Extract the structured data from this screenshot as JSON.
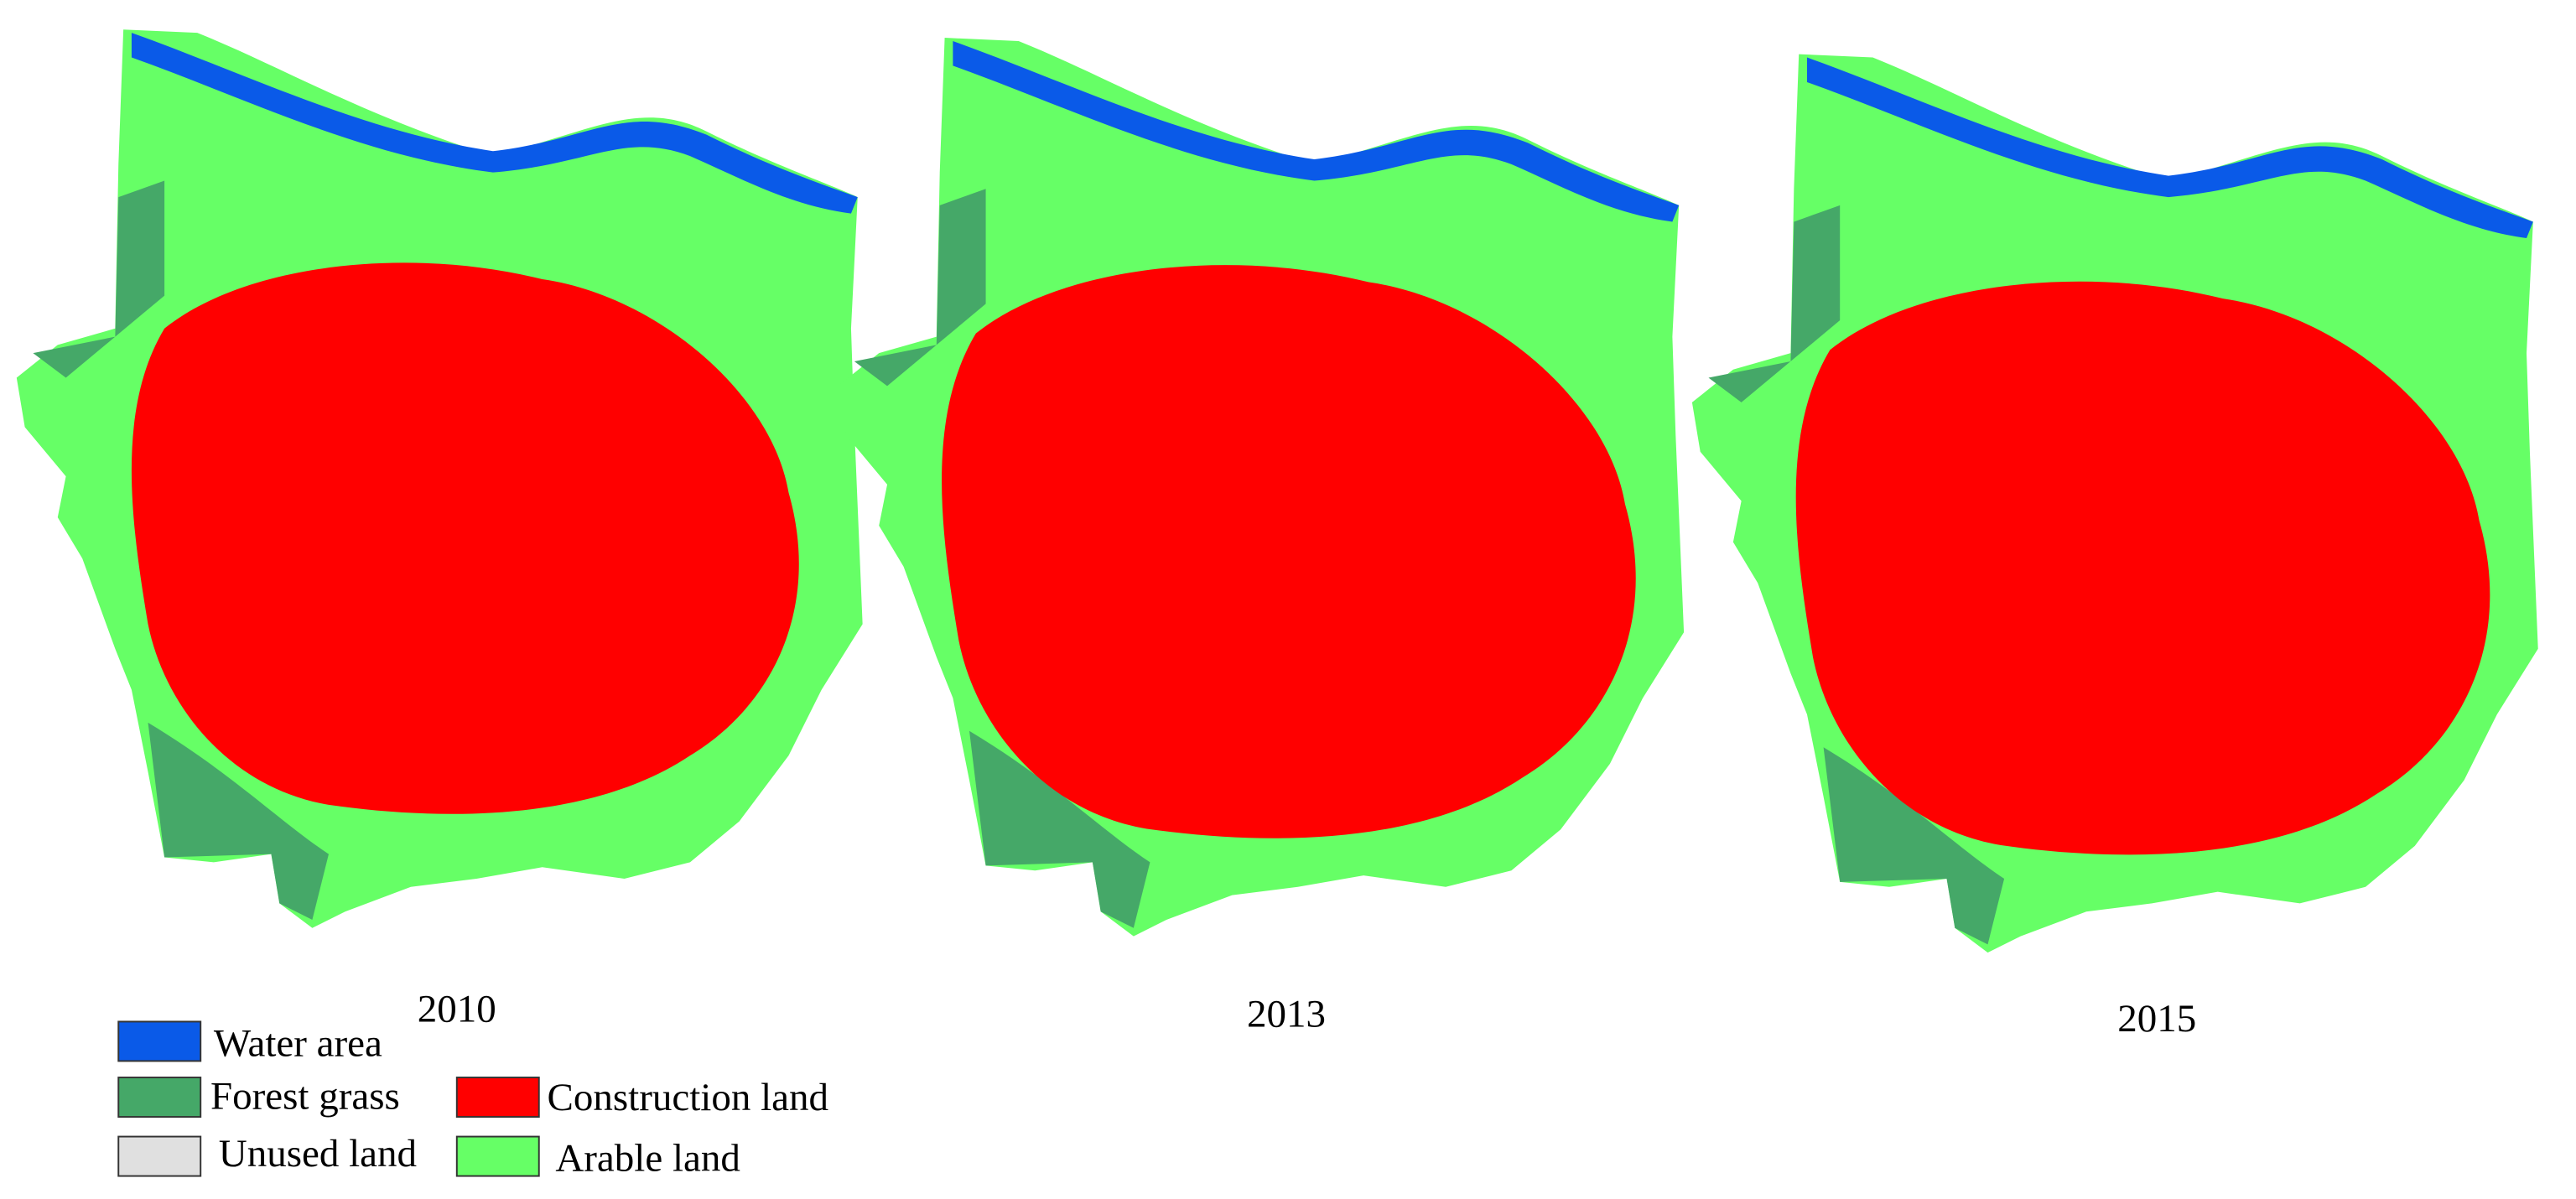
{
  "maps": [
    {
      "year": "2010"
    },
    {
      "year": "2013"
    },
    {
      "year": "2015"
    }
  ],
  "legend": [
    {
      "label": "Water area",
      "color": "#0a5ae8"
    },
    {
      "label": "Forest grass",
      "color": "#45a868"
    },
    {
      "label": "Construction land",
      "color": "#ff0000"
    },
    {
      "label": "Unused land",
      "color": "#e0e0e0"
    },
    {
      "label": "Arable land",
      "color": "#66ff66"
    }
  ]
}
